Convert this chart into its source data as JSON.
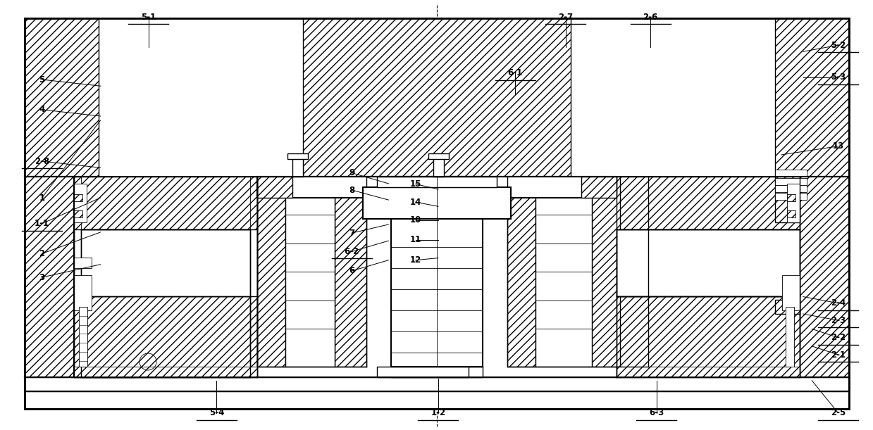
{
  "bg_color": "#ffffff",
  "line_color": "#000000",
  "figsize": [
    12.39,
    6.11
  ],
  "dpi": 100,
  "label_positions": {
    "1": {
      "lpos": [
        0.048,
        0.54
      ],
      "tpos": [
        0.115,
        0.72
      ]
    },
    "1-1": {
      "lpos": [
        0.048,
        0.48
      ],
      "tpos": [
        0.115,
        0.54
      ]
    },
    "1-2": {
      "lpos": [
        0.502,
        0.04
      ],
      "tpos": [
        0.502,
        0.12
      ]
    },
    "2": {
      "lpos": [
        0.048,
        0.41
      ],
      "tpos": [
        0.115,
        0.46
      ]
    },
    "2-1": {
      "lpos": [
        0.96,
        0.175
      ],
      "tpos": [
        0.93,
        0.195
      ]
    },
    "2-2": {
      "lpos": [
        0.96,
        0.215
      ],
      "tpos": [
        0.93,
        0.235
      ]
    },
    "2-3": {
      "lpos": [
        0.96,
        0.255
      ],
      "tpos": [
        0.92,
        0.27
      ]
    },
    "2-4": {
      "lpos": [
        0.96,
        0.295
      ],
      "tpos": [
        0.92,
        0.31
      ]
    },
    "2-5": {
      "lpos": [
        0.96,
        0.04
      ],
      "tpos": [
        0.93,
        0.115
      ]
    },
    "2-6": {
      "lpos": [
        0.745,
        0.96
      ],
      "tpos": [
        0.745,
        0.89
      ]
    },
    "2-7": {
      "lpos": [
        0.648,
        0.96
      ],
      "tpos": [
        0.648,
        0.89
      ]
    },
    "2-8": {
      "lpos": [
        0.048,
        0.625
      ],
      "tpos": [
        0.115,
        0.61
      ]
    },
    "3": {
      "lpos": [
        0.048,
        0.355
      ],
      "tpos": [
        0.115,
        0.385
      ]
    },
    "4": {
      "lpos": [
        0.048,
        0.745
      ],
      "tpos": [
        0.115,
        0.73
      ]
    },
    "5": {
      "lpos": [
        0.048,
        0.815
      ],
      "tpos": [
        0.115,
        0.8
      ]
    },
    "5-1": {
      "lpos": [
        0.17,
        0.96
      ],
      "tpos": [
        0.17,
        0.89
      ]
    },
    "5-2": {
      "lpos": [
        0.96,
        0.895
      ],
      "tpos": [
        0.92,
        0.88
      ]
    },
    "5-3": {
      "lpos": [
        0.96,
        0.82
      ],
      "tpos": [
        0.92,
        0.82
      ]
    },
    "5-4": {
      "lpos": [
        0.248,
        0.04
      ],
      "tpos": [
        0.248,
        0.115
      ]
    },
    "6": {
      "lpos": [
        0.403,
        0.37
      ],
      "tpos": [
        0.445,
        0.395
      ]
    },
    "6-1": {
      "lpos": [
        0.59,
        0.83
      ],
      "tpos": [
        0.59,
        0.78
      ]
    },
    "6-2": {
      "lpos": [
        0.403,
        0.415
      ],
      "tpos": [
        0.445,
        0.44
      ]
    },
    "6-3": {
      "lpos": [
        0.752,
        0.04
      ],
      "tpos": [
        0.752,
        0.115
      ]
    },
    "7": {
      "lpos": [
        0.403,
        0.458
      ],
      "tpos": [
        0.445,
        0.478
      ]
    },
    "8": {
      "lpos": [
        0.403,
        0.558
      ],
      "tpos": [
        0.445,
        0.535
      ]
    },
    "9": {
      "lpos": [
        0.403,
        0.598
      ],
      "tpos": [
        0.445,
        0.573
      ]
    },
    "10": {
      "lpos": [
        0.476,
        0.488
      ],
      "tpos": [
        0.502,
        0.488
      ]
    },
    "11": {
      "lpos": [
        0.476,
        0.442
      ],
      "tpos": [
        0.502,
        0.442
      ]
    },
    "12": {
      "lpos": [
        0.476,
        0.395
      ],
      "tpos": [
        0.502,
        0.4
      ]
    },
    "13": {
      "lpos": [
        0.96,
        0.66
      ],
      "tpos": [
        0.895,
        0.64
      ]
    },
    "14": {
      "lpos": [
        0.476,
        0.53
      ],
      "tpos": [
        0.502,
        0.52
      ]
    },
    "15": {
      "lpos": [
        0.476,
        0.572
      ],
      "tpos": [
        0.502,
        0.56
      ]
    }
  },
  "underlined": [
    "1-1",
    "1-2",
    "2-1",
    "2-2",
    "2-3",
    "2-4",
    "2-5",
    "2-6",
    "2-7",
    "2-8",
    "5-1",
    "5-2",
    "5-3",
    "5-4",
    "6-1",
    "6-2",
    "6-3"
  ]
}
